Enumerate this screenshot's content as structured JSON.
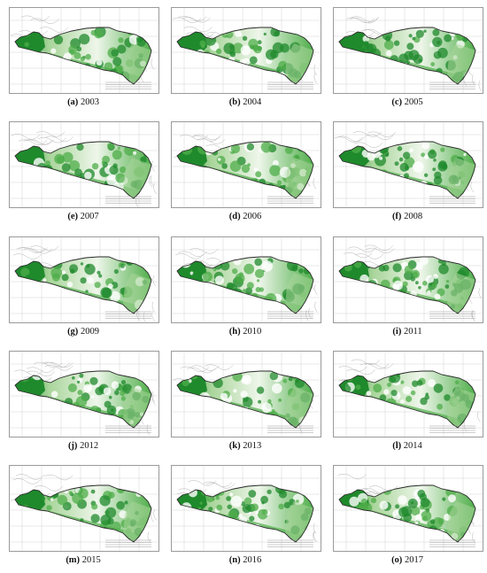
{
  "panels": [
    {
      "letter": "(a)",
      "year": "2003"
    },
    {
      "letter": "(b)",
      "year": "2004"
    },
    {
      "letter": "(c)",
      "year": "2005"
    },
    {
      "letter": "(e)",
      "year": "2007"
    },
    {
      "letter": "(d)",
      "year": "2006"
    },
    {
      "letter": "(f)",
      "year": "2008"
    },
    {
      "letter": "(g)",
      "year": "2009"
    },
    {
      "letter": "(h)",
      "year": "2010"
    },
    {
      "letter": "(i)",
      "year": "2011"
    },
    {
      "letter": "(j)",
      "year": "2012"
    },
    {
      "letter": "(k)",
      "year": "2013"
    },
    {
      "letter": "(l)",
      "year": "2014"
    },
    {
      "letter": "(m)",
      "year": "2015"
    },
    {
      "letter": "(n)",
      "year": "2016"
    },
    {
      "letter": "(o)",
      "year": "2017"
    }
  ],
  "colors": {
    "dark_green": "#1f8a2c",
    "mid_green": "#4fae4a",
    "light_green": "#a9d59b",
    "boundary": "#2a2a2a",
    "graticule": "#c8c8c8"
  }
}
